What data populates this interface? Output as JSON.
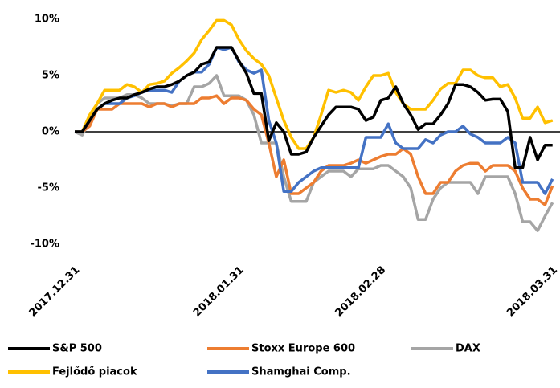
{
  "chart_data": {
    "type": "line",
    "categories": [
      "2017.12.31",
      null,
      null,
      null,
      null,
      null,
      null,
      null,
      null,
      null,
      null,
      null,
      null,
      null,
      null,
      null,
      null,
      null,
      null,
      null,
      null,
      null,
      "2018.01.31",
      null,
      null,
      null,
      null,
      null,
      null,
      null,
      null,
      null,
      null,
      null,
      null,
      null,
      null,
      null,
      null,
      null,
      null,
      "2018.02.28",
      null,
      null,
      null,
      null,
      null,
      null,
      null,
      null,
      null,
      null,
      null,
      null,
      null,
      null,
      null,
      null,
      null,
      null,
      null,
      null,
      null,
      null,
      "2018.03.31"
    ],
    "series": [
      {
        "name": "S&P 500",
        "color": "#000000",
        "values": [
          0,
          0,
          1,
          2,
          2.5,
          2.8,
          3,
          3,
          3.3,
          3.5,
          3.8,
          4,
          4,
          4.2,
          4.5,
          5,
          5.3,
          6,
          6.2,
          7.5,
          7.5,
          7.5,
          6.3,
          5.2,
          3.4,
          3.4,
          -0.8,
          0.8,
          0,
          -2,
          -2,
          -1.8,
          -0.5,
          0.5,
          1.5,
          2.2,
          2.2,
          2.2,
          2,
          1,
          1.3,
          2.8,
          3,
          4,
          2.5,
          1.5,
          0.2,
          0.7,
          0.7,
          1.5,
          2.5,
          4.2,
          4.2,
          4,
          3.5,
          2.8,
          2.9,
          2.9,
          1.8,
          -3.2,
          -3.2,
          -0.5,
          -2.5,
          -1.2,
          -1.2
        ]
      },
      {
        "name": "Stoxx Europe 600",
        "color": "#ed7d31",
        "values": [
          0,
          0,
          0.5,
          2,
          2,
          2,
          2.5,
          2.5,
          2.5,
          2.5,
          2.2,
          2.5,
          2.5,
          2.2,
          2.5,
          2.5,
          2.5,
          3,
          3,
          3.2,
          2.5,
          3,
          3,
          2.8,
          2,
          1.5,
          -1,
          -4,
          -2.5,
          -5.5,
          -5.5,
          -5,
          -4.5,
          -3.5,
          -3,
          -3,
          -3,
          -2.8,
          -2.5,
          -2.8,
          -2.5,
          -2.2,
          -2,
          -2,
          -1.5,
          -2,
          -4,
          -5.5,
          -5.5,
          -4.5,
          -4.5,
          -3.5,
          -3,
          -2.8,
          -2.8,
          -3.5,
          -3,
          -3,
          -3,
          -3.5,
          -5,
          -6,
          -6,
          -6.5,
          -4.8
        ]
      },
      {
        "name": "DAX",
        "color": "#a5a5a5",
        "values": [
          0,
          -0.3,
          1,
          2.5,
          3,
          3,
          3,
          3.3,
          3.3,
          3,
          2.5,
          2.5,
          2.5,
          2.3,
          2.5,
          2.5,
          4,
          4,
          4.3,
          5,
          3.2,
          3.2,
          3.2,
          2.8,
          1.5,
          -1,
          -1,
          -1,
          -4,
          -6.2,
          -6.2,
          -6.2,
          -4.5,
          -4,
          -3.5,
          -3.5,
          -3.5,
          -4,
          -3.3,
          -3.3,
          -3.3,
          -3,
          -3,
          -3.5,
          -4,
          -5,
          -7.8,
          -7.8,
          -6,
          -5,
          -4.5,
          -4.5,
          -4.5,
          -4.5,
          -5.5,
          -4,
          -4,
          -4,
          -4,
          -5.5,
          -8,
          -8,
          -8.8,
          -7.5,
          -6.3
        ]
      },
      {
        "name": "Fejlődő piacok",
        "color": "#ffc000",
        "values": [
          0,
          0,
          1.5,
          2.5,
          3.7,
          3.7,
          3.7,
          4.2,
          4,
          3.5,
          4.2,
          4.3,
          4.5,
          5.2,
          5.7,
          6.3,
          7,
          8.2,
          9,
          9.9,
          9.9,
          9.5,
          8.2,
          7.2,
          6.5,
          6,
          5,
          3,
          1,
          -0.5,
          -1.5,
          -1.5,
          -0.5,
          1.5,
          3.7,
          3.5,
          3.7,
          3.5,
          2.8,
          4,
          5,
          5,
          5.2,
          3.5,
          2.5,
          2,
          2,
          2,
          2.8,
          3.8,
          4.3,
          4.3,
          5.5,
          5.5,
          5,
          4.8,
          4.8,
          4,
          4.2,
          3,
          1.2,
          1.2,
          2.2,
          0.8,
          1
        ]
      },
      {
        "name": "Shamghai Comp.",
        "color": "#4472c4",
        "values": [
          0,
          0,
          1,
          2,
          2.5,
          2.5,
          2.5,
          3,
          3.2,
          3.5,
          3.7,
          3.7,
          3.7,
          3.5,
          4.5,
          5,
          5.3,
          5.3,
          6,
          7.5,
          7.3,
          7.5,
          6.2,
          5.5,
          5.2,
          5.5,
          1,
          -1,
          -5.3,
          -5.3,
          -4.5,
          -4,
          -3.5,
          -3.2,
          -3.2,
          -3.2,
          -3.2,
          -3.2,
          -3.2,
          -0.5,
          -0.5,
          -0.5,
          0.7,
          -1,
          -1.5,
          -1.5,
          -1.5,
          -0.7,
          -1,
          -0.3,
          0,
          0,
          0.5,
          -0.2,
          -0.5,
          -1,
          -1,
          -1,
          -0.5,
          -1,
          -4.5,
          -4.5,
          -4.5,
          -5.5,
          -4.2
        ]
      }
    ],
    "ylim": [
      -11,
      11
    ],
    "yticks": [
      {
        "value": -10,
        "label": "-10%"
      },
      {
        "value": -5,
        "label": "-5%"
      },
      {
        "value": 0,
        "label": "0%"
      },
      {
        "value": 5,
        "label": "5%"
      },
      {
        "value": 10,
        "label": "10%"
      }
    ],
    "legend": "bottom"
  }
}
